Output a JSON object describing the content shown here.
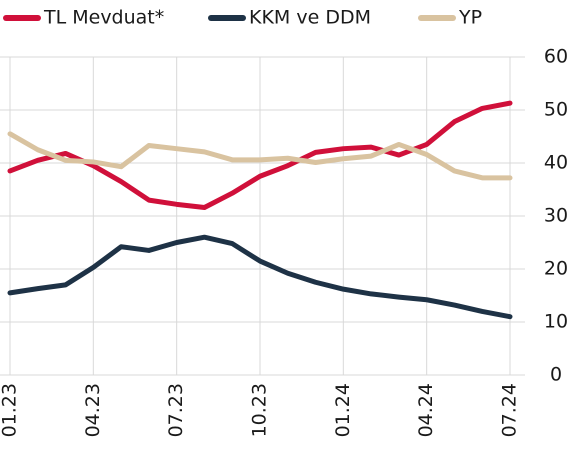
{
  "chart_data": {
    "type": "line",
    "categories": [
      "01.23",
      null,
      null,
      "04.23",
      null,
      null,
      "07.23",
      null,
      null,
      "10.23",
      null,
      null,
      "01.24",
      null,
      null,
      "04.24",
      null,
      null,
      "07.24"
    ],
    "series": [
      {
        "name": "TL Mevduat*",
        "color": "#d0103a",
        "values": [
          38.5,
          40.5,
          41.8,
          39.5,
          36.5,
          33,
          32.2,
          31.6,
          34.3,
          37.5,
          39.5,
          42,
          42.7,
          43,
          41.5,
          43.5,
          47.8,
          50.3,
          51.3
        ]
      },
      {
        "name": "KKM ve DDM",
        "color": "#1e3246",
        "values": [
          15.5,
          16.3,
          17,
          20.3,
          24.2,
          23.5,
          25,
          26,
          24.8,
          21.5,
          19.2,
          17.5,
          16.2,
          15.3,
          14.7,
          14.2,
          13.2,
          12,
          11
        ]
      },
      {
        "name": "YP",
        "color": "#d9c3a0",
        "values": [
          45.5,
          42.5,
          40.5,
          40.2,
          39.3,
          43.3,
          42.7,
          42.1,
          40.6,
          40.6,
          40.9,
          40.1,
          40.8,
          41.3,
          43.5,
          41.6,
          38.5,
          37.2,
          37.2
        ]
      }
    ],
    "ylim": [
      0,
      60
    ],
    "yticks": [
      0,
      10,
      20,
      30,
      40,
      50,
      60
    ],
    "grid": true,
    "legend": "top"
  }
}
